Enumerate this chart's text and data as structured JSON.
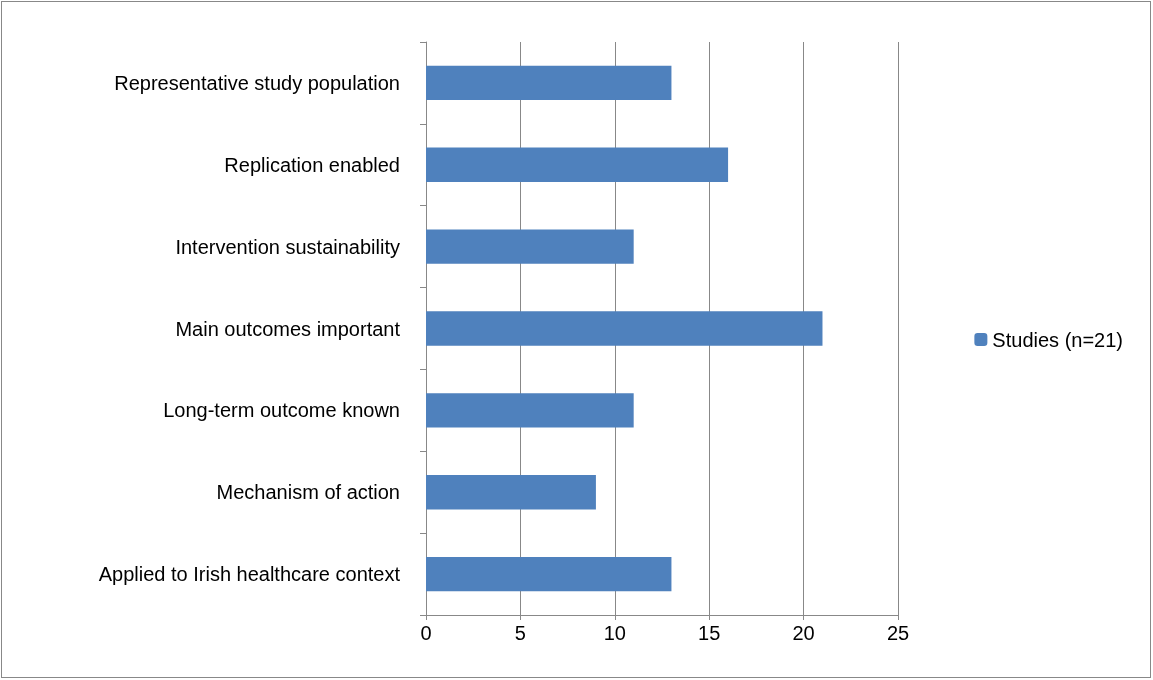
{
  "chart_data": {
    "type": "bar",
    "orientation": "horizontal",
    "categories": [
      "Representative study population",
      "Replication enabled",
      "Intervention sustainability",
      "Main outcomes important",
      "Long-term outcome known",
      "Mechanism of action",
      "Applied to Irish healthcare context"
    ],
    "series": [
      {
        "name": "Studies (n=21)",
        "color": "#4f81bd",
        "values": [
          13,
          16,
          11,
          21,
          11,
          9,
          13
        ]
      }
    ],
    "xlim": [
      0,
      25
    ],
    "xticks": [
      0,
      5,
      10,
      15,
      20,
      25
    ],
    "grid": "x",
    "legend": "right"
  }
}
